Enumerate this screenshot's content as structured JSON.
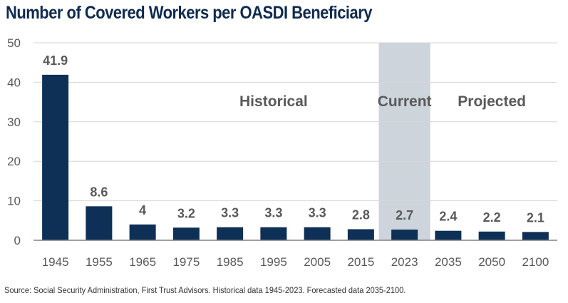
{
  "chart_data": {
    "type": "bar",
    "title": "Number of Covered Workers per OASDI Beneficiary",
    "categories": [
      "1945",
      "1955",
      "1965",
      "1975",
      "1985",
      "1995",
      "2005",
      "2015",
      "2023",
      "2035",
      "2050",
      "2100"
    ],
    "values": [
      41.9,
      8.6,
      4,
      3.2,
      3.3,
      3.3,
      3.3,
      2.8,
      2.7,
      2.4,
      2.2,
      2.1
    ],
    "data_labels": [
      "41.9",
      "8.6",
      "4",
      "3.2",
      "3.3",
      "3.3",
      "3.3",
      "2.8",
      "2.7",
      "2.4",
      "2.2",
      "2.1"
    ],
    "y_ticks": [
      "0",
      "10",
      "20",
      "30",
      "40",
      "50"
    ],
    "ylim": [
      0,
      50
    ],
    "grid": true,
    "xlabel": "",
    "ylabel": "",
    "highlight_category": "2023",
    "annotations": [
      {
        "text": "Historical",
        "category": "1995",
        "y": 35
      },
      {
        "text": "Current",
        "category": "2023",
        "y": 35
      },
      {
        "text": "Projected",
        "category": "2050",
        "y": 35
      }
    ],
    "colors": {
      "bar": "#0e2f56",
      "highlight": "#cdd4dc",
      "grid": "#d6d6d6",
      "axis": "#808080",
      "label": "#595959"
    }
  },
  "source_note": "Source: Social Security Administration, First Trust Advisors.  Historical data 1945-2023.  Forecasted data 2035-2100."
}
